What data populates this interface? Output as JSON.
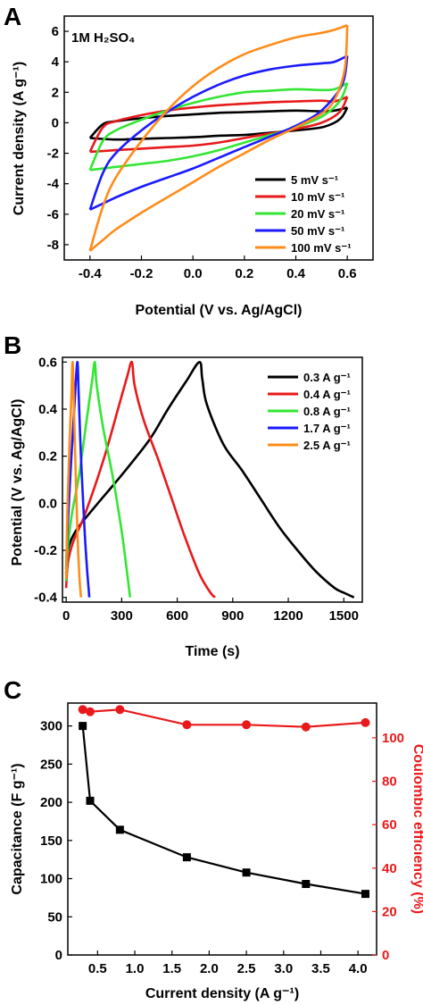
{
  "figure": {
    "panels": [
      {
        "letter": "A",
        "annotation": "1M H₂SO₄",
        "xlabel": "Potential (V vs. Ag/AgCl)",
        "ylabel": "Current density (A g⁻¹)"
      },
      {
        "letter": "B",
        "xlabel": "Time (s)",
        "ylabel": "Potential (V vs. Ag/AgCl)"
      },
      {
        "letter": "C",
        "xlabel": "Current density (A g⁻¹)",
        "ylabel": "Capacitance (F g⁻¹)",
        "y2label": "Coulombic efficiency (%)"
      }
    ]
  },
  "chart_data": [
    {
      "type": "line",
      "panel": "A",
      "xlim": [
        -0.5,
        0.7
      ],
      "ylim": [
        -9,
        7
      ],
      "xticks": [
        -0.4,
        -0.2,
        0.0,
        0.2,
        0.4,
        0.6
      ],
      "xtick_labels": [
        "-0.4",
        "-0.2",
        "0.0",
        "0.2",
        "0.4",
        "0.6"
      ],
      "yticks": [
        -8,
        -6,
        -4,
        -2,
        0,
        2,
        4,
        6
      ],
      "ytick_labels": [
        "-8",
        "-6",
        "-4",
        "-2",
        "0",
        "2",
        "4",
        "6"
      ],
      "legend_position": "bottom-right",
      "series": [
        {
          "name": "5 mV s⁻¹",
          "color": "#000000",
          "upper": [
            [
              -0.4,
              -1.0
            ],
            [
              -0.35,
              -0.1
            ],
            [
              -0.3,
              0.1
            ],
            [
              -0.2,
              0.3
            ],
            [
              -0.1,
              0.45
            ],
            [
              0.0,
              0.55
            ],
            [
              0.1,
              0.65
            ],
            [
              0.2,
              0.7
            ],
            [
              0.3,
              0.75
            ],
            [
              0.4,
              0.8
            ],
            [
              0.5,
              0.75
            ],
            [
              0.55,
              0.8
            ],
            [
              0.6,
              1.0
            ]
          ],
          "lower": [
            [
              0.6,
              1.0
            ],
            [
              0.58,
              0.4
            ],
            [
              0.55,
              0.0
            ],
            [
              0.5,
              -0.3
            ],
            [
              0.4,
              -0.5
            ],
            [
              0.3,
              -0.65
            ],
            [
              0.2,
              -0.8
            ],
            [
              0.1,
              -0.85
            ],
            [
              0.0,
              -0.95
            ],
            [
              -0.1,
              -1.0
            ],
            [
              -0.2,
              -1.05
            ],
            [
              -0.3,
              -1.1
            ],
            [
              -0.4,
              -1.0
            ]
          ]
        },
        {
          "name": "10 mV s⁻¹",
          "color": "#e8191a",
          "upper": [
            [
              -0.4,
              -1.9
            ],
            [
              -0.35,
              -0.3
            ],
            [
              -0.3,
              0.1
            ],
            [
              -0.2,
              0.5
            ],
            [
              -0.1,
              0.8
            ],
            [
              0.0,
              1.0
            ],
            [
              0.1,
              1.15
            ],
            [
              0.2,
              1.25
            ],
            [
              0.3,
              1.35
            ],
            [
              0.4,
              1.4
            ],
            [
              0.5,
              1.45
            ],
            [
              0.55,
              1.4
            ],
            [
              0.6,
              1.7
            ]
          ],
          "lower": [
            [
              0.6,
              1.7
            ],
            [
              0.57,
              0.7
            ],
            [
              0.5,
              0.0
            ],
            [
              0.4,
              -0.4
            ],
            [
              0.3,
              -0.7
            ],
            [
              0.2,
              -1.0
            ],
            [
              0.1,
              -1.3
            ],
            [
              0.0,
              -1.5
            ],
            [
              -0.1,
              -1.6
            ],
            [
              -0.2,
              -1.7
            ],
            [
              -0.3,
              -1.8
            ],
            [
              -0.4,
              -1.9
            ]
          ]
        },
        {
          "name": "20 mV s⁻¹",
          "color": "#33e633",
          "upper": [
            [
              -0.4,
              -3.1
            ],
            [
              -0.35,
              -1.2
            ],
            [
              -0.3,
              -0.5
            ],
            [
              -0.2,
              0.2
            ],
            [
              -0.1,
              0.8
            ],
            [
              0.0,
              1.3
            ],
            [
              0.1,
              1.7
            ],
            [
              0.2,
              2.0
            ],
            [
              0.3,
              2.1
            ],
            [
              0.4,
              2.2
            ],
            [
              0.5,
              2.15
            ],
            [
              0.55,
              2.2
            ],
            [
              0.6,
              2.6
            ]
          ],
          "lower": [
            [
              0.6,
              2.6
            ],
            [
              0.57,
              1.4
            ],
            [
              0.5,
              0.4
            ],
            [
              0.4,
              -0.3
            ],
            [
              0.3,
              -0.8
            ],
            [
              0.2,
              -1.3
            ],
            [
              0.1,
              -1.8
            ],
            [
              0.0,
              -2.2
            ],
            [
              -0.1,
              -2.5
            ],
            [
              -0.2,
              -2.7
            ],
            [
              -0.3,
              -2.9
            ],
            [
              -0.4,
              -3.1
            ]
          ]
        },
        {
          "name": "50 mV s⁻¹",
          "color": "#1a1aff",
          "upper": [
            [
              -0.4,
              -5.7
            ],
            [
              -0.35,
              -3.3
            ],
            [
              -0.3,
              -2.0
            ],
            [
              -0.2,
              -0.5
            ],
            [
              -0.1,
              0.7
            ],
            [
              0.0,
              1.7
            ],
            [
              0.1,
              2.5
            ],
            [
              0.2,
              3.1
            ],
            [
              0.3,
              3.5
            ],
            [
              0.4,
              3.75
            ],
            [
              0.5,
              3.9
            ],
            [
              0.55,
              4.0
            ],
            [
              0.6,
              4.4
            ]
          ],
          "lower": [
            [
              0.6,
              4.4
            ],
            [
              0.58,
              2.5
            ],
            [
              0.5,
              0.8
            ],
            [
              0.4,
              -0.2
            ],
            [
              0.3,
              -0.9
            ],
            [
              0.2,
              -1.6
            ],
            [
              0.1,
              -2.3
            ],
            [
              0.0,
              -3.0
            ],
            [
              -0.1,
              -3.6
            ],
            [
              -0.2,
              -4.2
            ],
            [
              -0.3,
              -4.9
            ],
            [
              -0.35,
              -5.3
            ],
            [
              -0.4,
              -5.7
            ]
          ]
        },
        {
          "name": "100 mV s⁻¹",
          "color": "#ff8c1a",
          "upper": [
            [
              -0.4,
              -8.4
            ],
            [
              -0.35,
              -5.5
            ],
            [
              -0.3,
              -3.6
            ],
            [
              -0.2,
              -1.2
            ],
            [
              -0.1,
              0.8
            ],
            [
              0.0,
              2.4
            ],
            [
              0.1,
              3.6
            ],
            [
              0.2,
              4.5
            ],
            [
              0.3,
              5.1
            ],
            [
              0.4,
              5.6
            ],
            [
              0.5,
              5.9
            ],
            [
              0.55,
              6.1
            ],
            [
              0.6,
              6.4
            ]
          ],
          "lower": [
            [
              0.6,
              6.4
            ],
            [
              0.59,
              3.5
            ],
            [
              0.55,
              1.5
            ],
            [
              0.5,
              0.6
            ],
            [
              0.4,
              -0.3
            ],
            [
              0.3,
              -1.1
            ],
            [
              0.2,
              -2.0
            ],
            [
              0.1,
              -2.9
            ],
            [
              0.0,
              -3.9
            ],
            [
              -0.1,
              -4.9
            ],
            [
              -0.2,
              -5.9
            ],
            [
              -0.3,
              -7.0
            ],
            [
              -0.35,
              -7.7
            ],
            [
              -0.4,
              -8.4
            ]
          ]
        }
      ]
    },
    {
      "type": "line",
      "panel": "B",
      "xlim": [
        -20,
        1600
      ],
      "ylim": [
        -0.42,
        0.62
      ],
      "xticks": [
        0,
        300,
        600,
        900,
        1200,
        1500
      ],
      "xtick_labels": [
        "0",
        "300",
        "600",
        "900",
        "1200",
        "1500"
      ],
      "yticks": [
        -0.4,
        -0.2,
        0.0,
        0.2,
        0.4,
        0.6
      ],
      "ytick_labels": [
        "-0.4",
        "-0.2",
        "0.0",
        "0.2",
        "0.4",
        "0.6"
      ],
      "legend_position": "top-right",
      "series": [
        {
          "name": "0.3 A g⁻¹",
          "color": "#000000",
          "points": [
            [
              0,
              -0.3
            ],
            [
              10,
              -0.2
            ],
            [
              50,
              -0.12
            ],
            [
              150,
              -0.02
            ],
            [
              300,
              0.12
            ],
            [
              450,
              0.27
            ],
            [
              550,
              0.4
            ],
            [
              650,
              0.52
            ],
            [
              720,
              0.6
            ],
            [
              735,
              0.53
            ],
            [
              760,
              0.42
            ],
            [
              850,
              0.25
            ],
            [
              950,
              0.14
            ],
            [
              1050,
              0.02
            ],
            [
              1150,
              -0.1
            ],
            [
              1250,
              -0.2
            ],
            [
              1350,
              -0.29
            ],
            [
              1450,
              -0.36
            ],
            [
              1500,
              -0.38
            ],
            [
              1555,
              -0.4
            ]
          ]
        },
        {
          "name": "0.4 A g⁻¹",
          "color": "#e8191a",
          "points": [
            [
              0,
              -0.36
            ],
            [
              10,
              -0.25
            ],
            [
              40,
              -0.16
            ],
            [
              100,
              -0.05
            ],
            [
              200,
              0.18
            ],
            [
              280,
              0.4
            ],
            [
              330,
              0.54
            ],
            [
              355,
              0.6
            ],
            [
              370,
              0.5
            ],
            [
              420,
              0.35
            ],
            [
              500,
              0.18
            ],
            [
              570,
              0.02
            ],
            [
              640,
              -0.14
            ],
            [
              720,
              -0.3
            ],
            [
              780,
              -0.38
            ],
            [
              805,
              -0.4
            ]
          ]
        },
        {
          "name": "0.8 A g⁻¹",
          "color": "#33e633",
          "points": [
            [
              0,
              -0.33
            ],
            [
              8,
              -0.2
            ],
            [
              30,
              -0.05
            ],
            [
              70,
              0.12
            ],
            [
              110,
              0.35
            ],
            [
              140,
              0.52
            ],
            [
              155,
              0.6
            ],
            [
              165,
              0.5
            ],
            [
              200,
              0.32
            ],
            [
              250,
              0.12
            ],
            [
              300,
              -0.12
            ],
            [
              330,
              -0.3
            ],
            [
              345,
              -0.4
            ]
          ]
        },
        {
          "name": "1.7 A g⁻¹",
          "color": "#1a1aff",
          "points": [
            [
              0,
              -0.28
            ],
            [
              8,
              -0.1
            ],
            [
              25,
              0.15
            ],
            [
              45,
              0.42
            ],
            [
              60,
              0.6
            ],
            [
              68,
              0.45
            ],
            [
              80,
              0.2
            ],
            [
              95,
              -0.05
            ],
            [
              110,
              -0.25
            ],
            [
              125,
              -0.4
            ]
          ]
        },
        {
          "name": "2.5 A g⁻¹",
          "color": "#ff8c1a",
          "points": [
            [
              0,
              -0.32
            ],
            [
              6,
              -0.05
            ],
            [
              18,
              0.25
            ],
            [
              28,
              0.45
            ],
            [
              35,
              0.6
            ],
            [
              42,
              0.4
            ],
            [
              52,
              0.12
            ],
            [
              62,
              -0.15
            ],
            [
              72,
              -0.32
            ],
            [
              80,
              -0.4
            ]
          ]
        }
      ]
    },
    {
      "type": "line",
      "panel": "C",
      "xlim": [
        0.1,
        4.25
      ],
      "ylim": [
        0,
        330
      ],
      "y2lim": [
        0,
        116
      ],
      "xticks": [
        0.5,
        1.0,
        1.5,
        2.0,
        2.5,
        3.0,
        3.5,
        4.0
      ],
      "xtick_labels": [
        "0.5",
        "1.0",
        "1.5",
        "2.0",
        "2.5",
        "3.0",
        "3.5",
        "4.0"
      ],
      "yticks": [
        0,
        50,
        100,
        150,
        200,
        250,
        300
      ],
      "ytick_labels": [
        "0",
        "50",
        "100",
        "150",
        "200",
        "250",
        "300"
      ],
      "y2ticks": [
        0,
        20,
        40,
        60,
        80,
        100
      ],
      "y2tick_labels": [
        "0",
        "20",
        "40",
        "60",
        "80",
        "100"
      ],
      "series": [
        {
          "name": "Capacitance",
          "axis": "left",
          "color": "#000000",
          "marker": "square",
          "x": [
            0.3,
            0.4,
            0.8,
            1.7,
            2.5,
            3.3,
            4.1
          ],
          "y": [
            300,
            202,
            164,
            128,
            108,
            93,
            80
          ]
        },
        {
          "name": "Coulombic efficiency",
          "axis": "right",
          "color": "#e8191a",
          "marker": "circle",
          "x": [
            0.3,
            0.4,
            0.8,
            1.7,
            2.5,
            3.3,
            4.1
          ],
          "y": [
            113,
            112,
            113,
            106,
            106,
            105,
            107
          ]
        }
      ]
    }
  ]
}
